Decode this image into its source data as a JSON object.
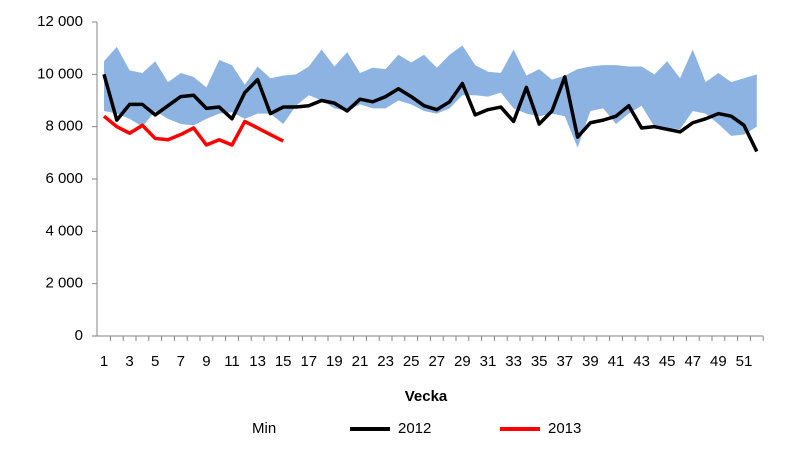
{
  "chart_data": {
    "type": "line",
    "xlabel": "Vecka",
    "categories": [
      1,
      null,
      3,
      null,
      5,
      null,
      7,
      null,
      9,
      null,
      11,
      null,
      13,
      null,
      15,
      null,
      17,
      null,
      19,
      null,
      21,
      null,
      23,
      null,
      25,
      null,
      27,
      null,
      29,
      null,
      31,
      null,
      33,
      null,
      35,
      null,
      37,
      null,
      39,
      null,
      41,
      null,
      43,
      null,
      45,
      null,
      47,
      null,
      49,
      null,
      51,
      null
    ],
    "ylim": [
      0,
      12000
    ],
    "yticks": [
      0,
      {
        "value": 2000,
        "label": "2 000"
      },
      {
        "value": 4000,
        "label": "4 000"
      },
      {
        "value": 6000,
        "label": "6 000"
      },
      {
        "value": 8000,
        "label": "8 000"
      },
      {
        "value": 10000,
        "label": "10 000"
      },
      {
        "value": 12000,
        "label": "12 000"
      }
    ],
    "grid": false,
    "series": [
      {
        "name": "Min",
        "type": "area",
        "color": "#ffffff",
        "values": [
          8600,
          8500,
          8300,
          8000,
          8600,
          8300,
          8100,
          8050,
          8300,
          8500,
          8550,
          8300,
          8500,
          8500,
          8100,
          8800,
          9200,
          9000,
          8700,
          8600,
          8850,
          8700,
          8700,
          9000,
          8850,
          8600,
          8500,
          8700,
          9200,
          9200,
          9150,
          9300,
          8700,
          8500,
          8400,
          8500,
          8400,
          7200,
          8600,
          8700,
          8100,
          8500,
          8800,
          8000,
          7950,
          7900,
          8600,
          8500,
          8100,
          7650,
          7700,
          8000
        ]
      },
      {
        "type": "area",
        "color": "#8db3e2",
        "values": [
          1900,
          2550,
          1850,
          2050,
          1900,
          1400,
          1950,
          1850,
          1200,
          2050,
          1800,
          1300,
          1800,
          1350,
          1850,
          1200,
          1100,
          1950,
          1600,
          2250,
          1200,
          1550,
          1500,
          1750,
          1600,
          2150,
          1750,
          2050,
          1900,
          1150,
          950,
          750,
          2250,
          1450,
          1800,
          1300,
          1550,
          3000,
          1700,
          1650,
          2250,
          1800,
          1500,
          2000,
          2550,
          1950,
          2350,
          1200,
          1950,
          2050,
          2150,
          2000
        ]
      },
      {
        "name": "2012",
        "type": "line",
        "color": "#000000",
        "values": [
          10000,
          8250,
          8850,
          8850,
          8450,
          8800,
          9150,
          9200,
          8700,
          8750,
          8300,
          9300,
          9800,
          8500,
          8750,
          8750,
          8800,
          9000,
          8900,
          8600,
          9050,
          8950,
          9150,
          9450,
          9150,
          8800,
          8650,
          8950,
          9650,
          8450,
          8650,
          8750,
          8200,
          9500,
          8100,
          8600,
          9900,
          7600,
          8150,
          8250,
          8400,
          8800,
          7950,
          8000,
          7900,
          7800,
          8150,
          8300,
          8500,
          8400,
          8050,
          7050
        ]
      },
      {
        "name": "2013",
        "type": "line",
        "color": "#ff0000",
        "values": [
          8400,
          8000,
          7750,
          8050,
          7550,
          7500,
          7700,
          7950,
          7300,
          7500,
          7300,
          8200,
          7950,
          7700,
          7450,
          null,
          null,
          null,
          null,
          null,
          null,
          null,
          null,
          null,
          null,
          null,
          null,
          null,
          null,
          null,
          null,
          null,
          null,
          null,
          null,
          null,
          null,
          null,
          null,
          null,
          null,
          null,
          null,
          null,
          null,
          null,
          null,
          null,
          null,
          null,
          null,
          null
        ]
      }
    ]
  }
}
